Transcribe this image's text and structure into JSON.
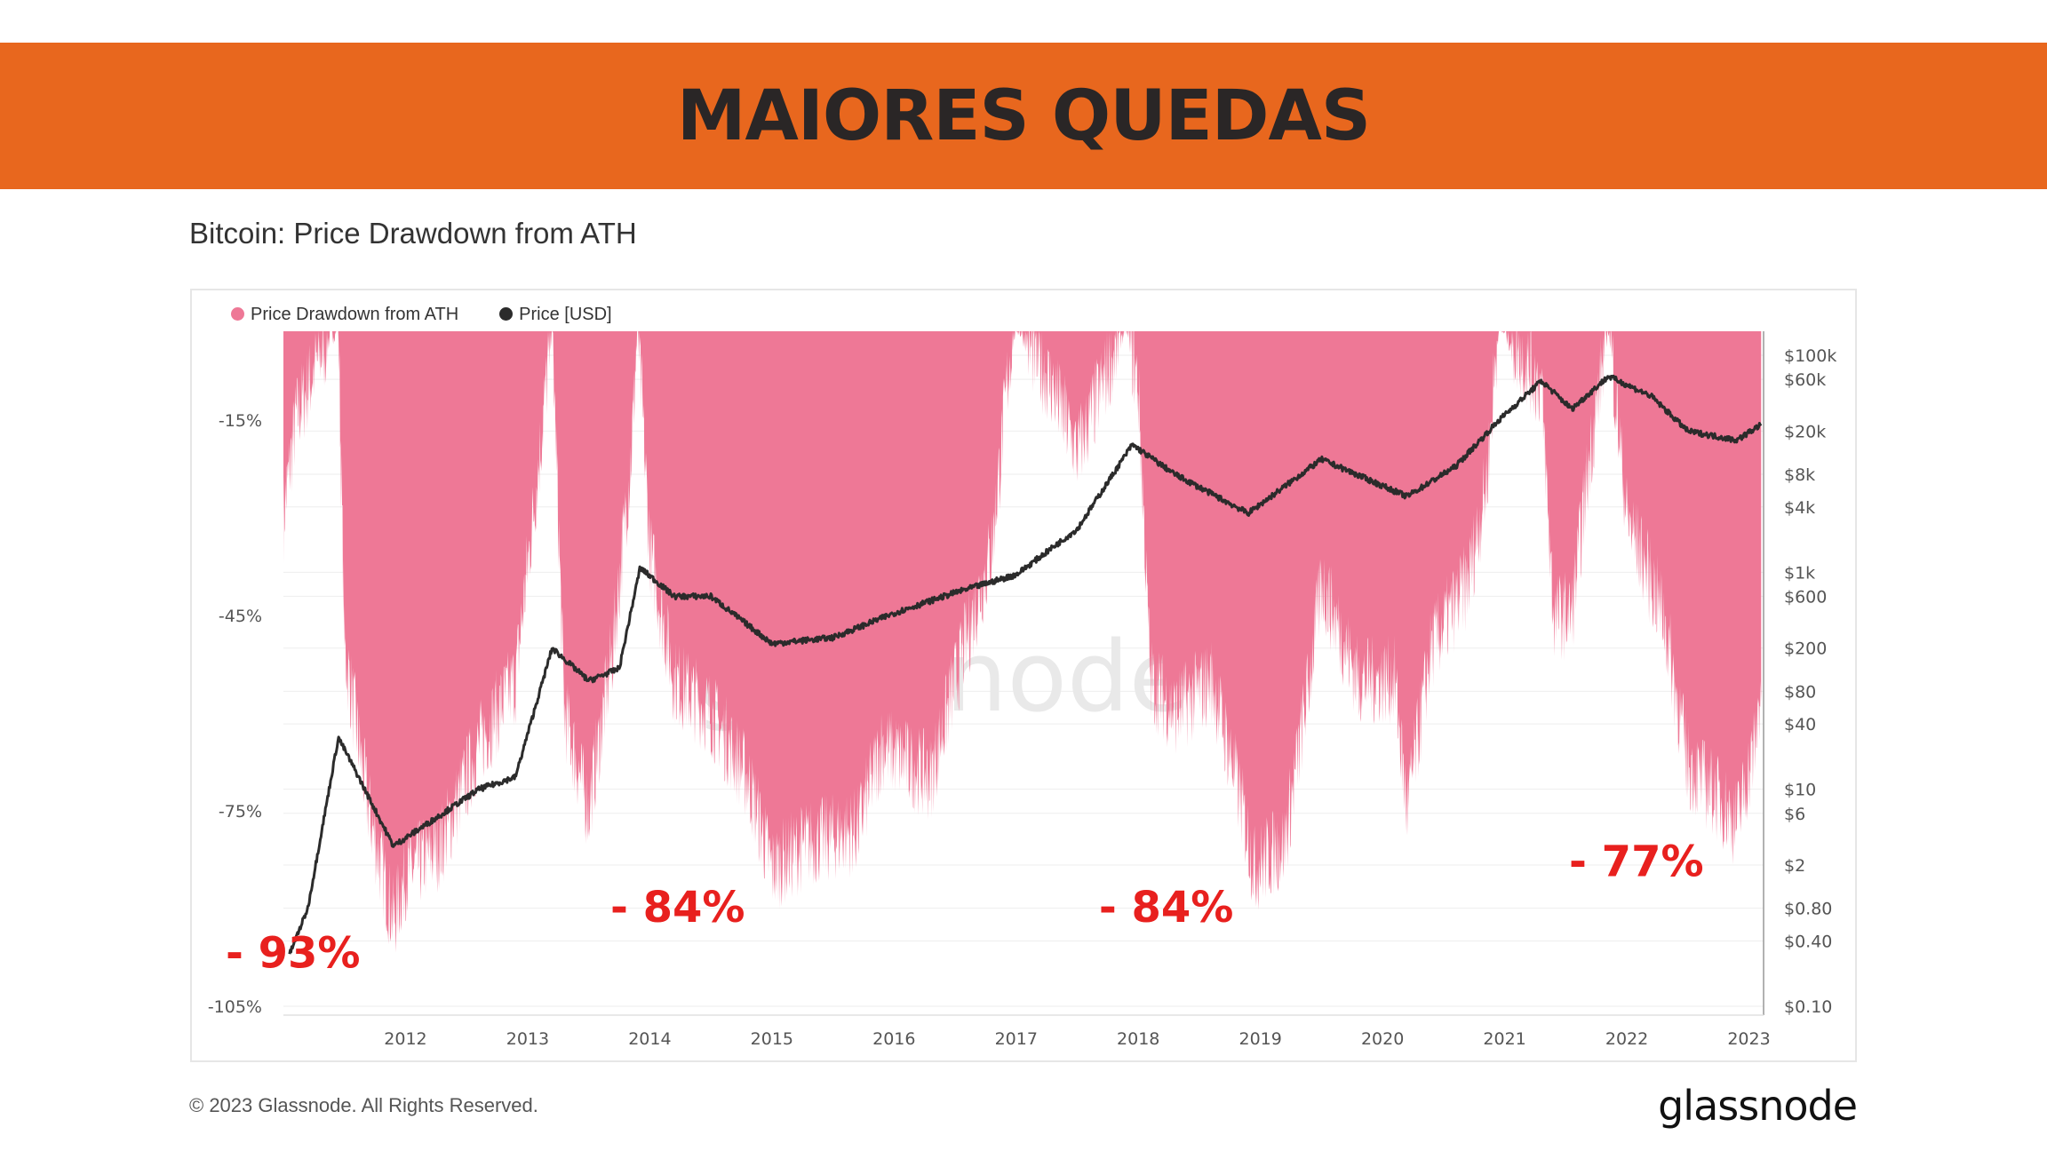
{
  "banner": {
    "title": "MAIORES QUEDAS"
  },
  "chart_data": {
    "type": "area",
    "title": "Bitcoin: Price Drawdown from ATH",
    "legend": [
      {
        "name": "Price Drawdown from ATH",
        "color": "#EE7896"
      },
      {
        "name": "Price [USD]",
        "color": "#2b2b2b"
      }
    ],
    "legend_position": "top-left",
    "x_ticks": [
      "2012",
      "2013",
      "2014",
      "2015",
      "2016",
      "2017",
      "2018",
      "2019",
      "2020",
      "2021",
      "2022",
      "2023"
    ],
    "xlim": [
      2011.0,
      2023.12
    ],
    "left_axis": {
      "ticks": [
        "-15%",
        "-45%",
        "-75%",
        "-105%"
      ],
      "tick_values": [
        -15,
        -45,
        -75,
        -105
      ],
      "ylim": [
        -105,
        0
      ]
    },
    "right_axis": {
      "scale": "log",
      "ticks": [
        "$100k",
        "$60k",
        "$20k",
        "$8k",
        "$4k",
        "$1k",
        "$600",
        "$200",
        "$80",
        "$40",
        "$10",
        "$6",
        "$2",
        "$0.80",
        "$0.40",
        "$0.10"
      ],
      "tick_values": [
        100000,
        60000,
        20000,
        8000,
        4000,
        1000,
        600,
        200,
        80,
        40,
        10,
        6,
        2,
        0.8,
        0.4,
        0.1
      ],
      "ylim": [
        0.1,
        100000
      ]
    },
    "series": [
      {
        "name": "Price Drawdown from ATH",
        "unit": "%",
        "points": [
          [
            2011.0,
            -30
          ],
          [
            2011.1,
            -15
          ],
          [
            2011.3,
            -5
          ],
          [
            2011.45,
            0
          ],
          [
            2011.5,
            -50
          ],
          [
            2011.7,
            -75
          ],
          [
            2011.9,
            -92
          ],
          [
            2012.0,
            -85
          ],
          [
            2012.3,
            -80
          ],
          [
            2012.6,
            -65
          ],
          [
            2012.9,
            -55
          ],
          [
            2013.1,
            -20
          ],
          [
            2013.2,
            0
          ],
          [
            2013.3,
            -60
          ],
          [
            2013.5,
            -75
          ],
          [
            2013.7,
            -50
          ],
          [
            2013.85,
            -20
          ],
          [
            2013.9,
            0
          ],
          [
            2014.0,
            -35
          ],
          [
            2014.2,
            -55
          ],
          [
            2014.5,
            -60
          ],
          [
            2014.8,
            -70
          ],
          [
            2015.0,
            -84
          ],
          [
            2015.3,
            -80
          ],
          [
            2015.7,
            -78
          ],
          [
            2015.9,
            -65
          ],
          [
            2016.3,
            -70
          ],
          [
            2016.5,
            -55
          ],
          [
            2016.8,
            -35
          ],
          [
            2016.95,
            -5
          ],
          [
            2017.0,
            0
          ],
          [
            2017.3,
            -10
          ],
          [
            2017.5,
            -20
          ],
          [
            2017.9,
            0
          ],
          [
            2018.0,
            -10
          ],
          [
            2018.1,
            -55
          ],
          [
            2018.3,
            -60
          ],
          [
            2018.6,
            -55
          ],
          [
            2018.8,
            -70
          ],
          [
            2018.95,
            -84
          ],
          [
            2019.2,
            -80
          ],
          [
            2019.4,
            -55
          ],
          [
            2019.5,
            -40
          ],
          [
            2019.8,
            -55
          ],
          [
            2020.1,
            -55
          ],
          [
            2020.2,
            -75
          ],
          [
            2020.4,
            -50
          ],
          [
            2020.7,
            -40
          ],
          [
            2020.85,
            -25
          ],
          [
            2020.95,
            0
          ],
          [
            2021.3,
            -10
          ],
          [
            2021.4,
            -45
          ],
          [
            2021.55,
            -45
          ],
          [
            2021.7,
            -20
          ],
          [
            2021.85,
            0
          ],
          [
            2022.0,
            -30
          ],
          [
            2022.3,
            -45
          ],
          [
            2022.5,
            -68
          ],
          [
            2022.7,
            -72
          ],
          [
            2022.9,
            -77
          ],
          [
            2023.05,
            -65
          ],
          [
            2023.1,
            -55
          ]
        ]
      },
      {
        "name": "Price [USD]",
        "unit": "USD",
        "points": [
          [
            2011.05,
            0.3
          ],
          [
            2011.2,
            0.8
          ],
          [
            2011.45,
            30
          ],
          [
            2011.6,
            14
          ],
          [
            2011.9,
            3
          ],
          [
            2012.2,
            5
          ],
          [
            2012.6,
            10
          ],
          [
            2012.9,
            13
          ],
          [
            2013.2,
            200
          ],
          [
            2013.5,
            100
          ],
          [
            2013.75,
            130
          ],
          [
            2013.92,
            1100
          ],
          [
            2014.2,
            600
          ],
          [
            2014.5,
            600
          ],
          [
            2015.0,
            220
          ],
          [
            2015.5,
            250
          ],
          [
            2016.0,
            420
          ],
          [
            2016.5,
            650
          ],
          [
            2017.0,
            950
          ],
          [
            2017.5,
            2500
          ],
          [
            2017.95,
            15000
          ],
          [
            2018.3,
            8000
          ],
          [
            2018.9,
            3500
          ],
          [
            2019.5,
            11000
          ],
          [
            2020.2,
            5000
          ],
          [
            2020.6,
            9500
          ],
          [
            2020.95,
            25000
          ],
          [
            2021.3,
            58000
          ],
          [
            2021.55,
            32000
          ],
          [
            2021.85,
            64000
          ],
          [
            2022.2,
            42000
          ],
          [
            2022.5,
            20000
          ],
          [
            2022.9,
            16500
          ],
          [
            2023.1,
            23000
          ]
        ]
      }
    ],
    "annotations": [
      {
        "text": "- 93%",
        "x": 2011.0,
        "y": -97
      },
      {
        "text": "- 84%",
        "x": 2014.15,
        "y": -90
      },
      {
        "text": "- 84%",
        "x": 2018.15,
        "y": -90
      },
      {
        "text": "- 77%",
        "x": 2022.0,
        "y": -83
      }
    ],
    "watermark": "glassnode"
  },
  "footer": {
    "copyright": "© 2023 Glassnode. All Rights Reserved.",
    "logo": "glassnode"
  }
}
